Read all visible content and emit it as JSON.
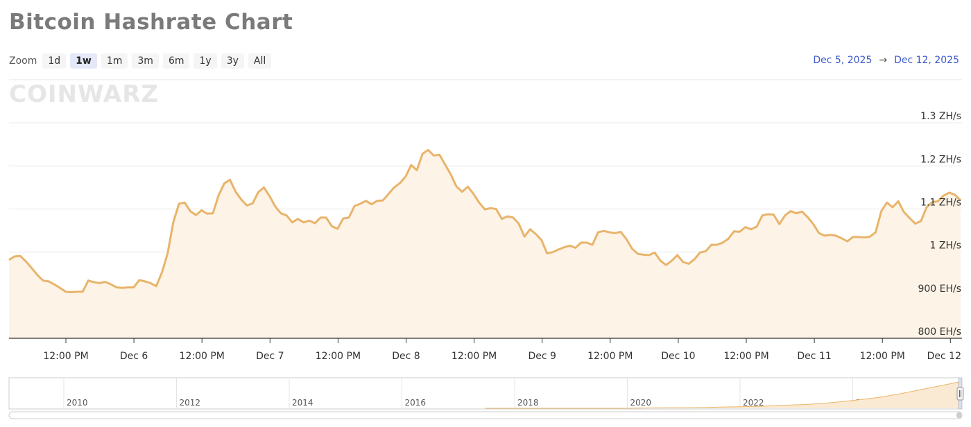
{
  "title": "Bitcoin Hashrate Chart",
  "zoom": {
    "label": "Zoom",
    "buttons": [
      "1d",
      "1w",
      "1m",
      "3m",
      "6m",
      "1y",
      "3y",
      "All"
    ],
    "selected": "1w"
  },
  "range": {
    "from": "Dec 5, 2025",
    "arrow": "→",
    "to": "Dec 12, 2025"
  },
  "watermark": "COINWARZ",
  "colors": {
    "line": "#e8b46b",
    "fill": "#fdf3e6",
    "grid": "#e6e6e6",
    "axis": "#333333",
    "range": "#3d5bcc"
  },
  "chart_data": {
    "type": "area",
    "series": [
      {
        "values": [
          982,
          990,
          991,
          978,
          963,
          947,
          934,
          932,
          925,
          917,
          908,
          907,
          908,
          908,
          934,
          930,
          928,
          931,
          925,
          918,
          917,
          918,
          918,
          935,
          932,
          928,
          921,
          953,
          997,
          1069,
          1112,
          1115,
          1095,
          1086,
          1097,
          1089,
          1090,
          1132,
          1159,
          1168,
          1140,
          1122,
          1108,
          1113,
          1139,
          1150,
          1130,
          1106,
          1090,
          1085,
          1069,
          1077,
          1069,
          1073,
          1067,
          1080,
          1080,
          1060,
          1054,
          1078,
          1080,
          1107,
          1112,
          1119,
          1111,
          1119,
          1120,
          1135,
          1150,
          1160,
          1175,
          1202,
          1190,
          1228,
          1237,
          1224,
          1226,
          1203,
          1180,
          1152,
          1140,
          1152,
          1135,
          1115,
          1099,
          1102,
          1100,
          1077,
          1083,
          1080,
          1066,
          1036,
          1053,
          1042,
          1028,
          997,
          1000,
          1006,
          1011,
          1015,
          1010,
          1022,
          1022,
          1017,
          1046,
          1049,
          1046,
          1044,
          1047,
          1030,
          1008,
          996,
          994,
          993,
          999,
          980,
          970,
          980,
          993,
          977,
          973,
          983,
          999,
          1002,
          1017,
          1017,
          1022,
          1031,
          1048,
          1047,
          1058,
          1053,
          1059,
          1085,
          1088,
          1087,
          1065,
          1085,
          1095,
          1090,
          1094,
          1081,
          1065,
          1044,
          1038,
          1040,
          1038,
          1032,
          1025,
          1035,
          1035,
          1034,
          1036,
          1046,
          1095,
          1115,
          1104,
          1118,
          1093,
          1079,
          1066,
          1072,
          1104,
          1116,
          1118,
          1131,
          1138,
          1133,
          1120
        ]
      }
    ],
    "x_ticks": [
      "12:00 PM",
      "Dec 6",
      "12:00 PM",
      "Dec 7",
      "12:00 PM",
      "Dec 8",
      "12:00 PM",
      "Dec 9",
      "12:00 PM",
      "Dec 10",
      "12:00 PM",
      "Dec 11",
      "12:00 PM",
      "Dec 12"
    ],
    "y_ticks": [
      {
        "value": 800,
        "label": "800 EH/s"
      },
      {
        "value": 900,
        "label": "900 EH/s"
      },
      {
        "value": 1000,
        "label": "1 ZH/s"
      },
      {
        "value": 1100,
        "label": "1.1 ZH/s"
      },
      {
        "value": 1200,
        "label": "1.2 ZH/s"
      },
      {
        "value": 1300,
        "label": "1.3 ZH/s"
      }
    ],
    "ylim": [
      800,
      1400
    ],
    "grid": true
  },
  "navigator": {
    "year_labels": [
      "2010",
      "2012",
      "2014",
      "2016",
      "2018",
      "2020",
      "2022",
      "2024"
    ],
    "trend": [
      0,
      0,
      0,
      0,
      0,
      0,
      0,
      0,
      0.01,
      0.02,
      0.02,
      0.03,
      0.05,
      0.06,
      0.08,
      0.11,
      0.14,
      0.18,
      0.25,
      0.33,
      0.42,
      0.55,
      0.7,
      0.85,
      1.0
    ]
  }
}
